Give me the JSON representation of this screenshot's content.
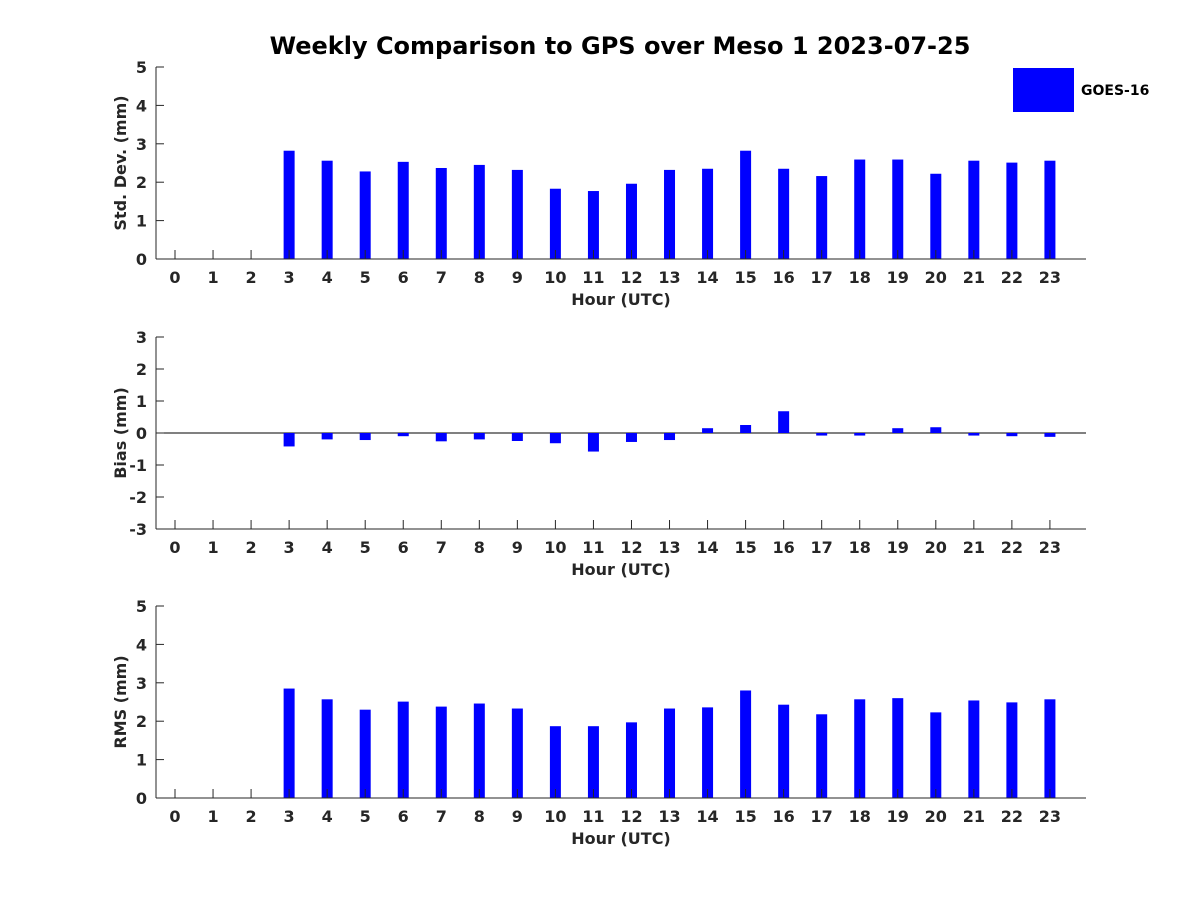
{
  "title": "Weekly Comparison to GPS over Meso 1 2023-07-25",
  "colors": {
    "bar": "#0000ff",
    "axis": "#262626"
  },
  "chart_data": [
    {
      "type": "bar",
      "title": "Weekly Comparison to GPS over Meso 1 2023-07-25",
      "xlabel": "Hour (UTC)",
      "ylabel": "Std. Dev. (mm)",
      "categories": [
        "0",
        "1",
        "2",
        "3",
        "4",
        "5",
        "6",
        "7",
        "8",
        "9",
        "10",
        "11",
        "12",
        "13",
        "14",
        "15",
        "16",
        "17",
        "18",
        "19",
        "20",
        "21",
        "22",
        "23"
      ],
      "ylim": [
        0,
        5
      ],
      "yticks": [
        "0",
        "1",
        "2",
        "3",
        "4",
        "5"
      ],
      "legend": {
        "label": "GOES-16",
        "position": "top-right"
      },
      "series": [
        {
          "name": "GOES-16",
          "values": [
            null,
            null,
            null,
            2.82,
            2.56,
            2.28,
            2.53,
            2.37,
            2.45,
            2.32,
            1.83,
            1.77,
            1.96,
            2.32,
            2.35,
            2.82,
            2.35,
            2.16,
            2.59,
            2.59,
            2.22,
            2.56,
            2.51,
            2.56
          ]
        }
      ]
    },
    {
      "type": "bar",
      "title": "",
      "xlabel": "Hour (UTC)",
      "ylabel": "Bias (mm)",
      "categories": [
        "0",
        "1",
        "2",
        "3",
        "4",
        "5",
        "6",
        "7",
        "8",
        "9",
        "10",
        "11",
        "12",
        "13",
        "14",
        "15",
        "16",
        "17",
        "18",
        "19",
        "20",
        "21",
        "22",
        "23"
      ],
      "ylim": [
        -3,
        3
      ],
      "yticks": [
        "-3",
        "-2",
        "-1",
        "0",
        "1",
        "2",
        "3"
      ],
      "series": [
        {
          "name": "GOES-16",
          "values": [
            null,
            null,
            null,
            -0.42,
            -0.2,
            -0.22,
            -0.1,
            -0.26,
            -0.2,
            -0.25,
            -0.32,
            -0.58,
            -0.28,
            -0.22,
            0.15,
            0.25,
            0.68,
            -0.08,
            -0.08,
            0.15,
            0.18,
            -0.08,
            -0.1,
            -0.12
          ]
        }
      ]
    },
    {
      "type": "bar",
      "title": "",
      "xlabel": "Hour (UTC)",
      "ylabel": "RMS (mm)",
      "categories": [
        "0",
        "1",
        "2",
        "3",
        "4",
        "5",
        "6",
        "7",
        "8",
        "9",
        "10",
        "11",
        "12",
        "13",
        "14",
        "15",
        "16",
        "17",
        "18",
        "19",
        "20",
        "21",
        "22",
        "23"
      ],
      "ylim": [
        0,
        5
      ],
      "yticks": [
        "0",
        "1",
        "2",
        "3",
        "4",
        "5"
      ],
      "series": [
        {
          "name": "GOES-16",
          "values": [
            null,
            null,
            null,
            2.85,
            2.57,
            2.3,
            2.51,
            2.38,
            2.46,
            2.33,
            1.87,
            1.87,
            1.97,
            2.33,
            2.36,
            2.8,
            2.43,
            2.18,
            2.57,
            2.6,
            2.23,
            2.54,
            2.49,
            2.57
          ]
        }
      ]
    }
  ]
}
